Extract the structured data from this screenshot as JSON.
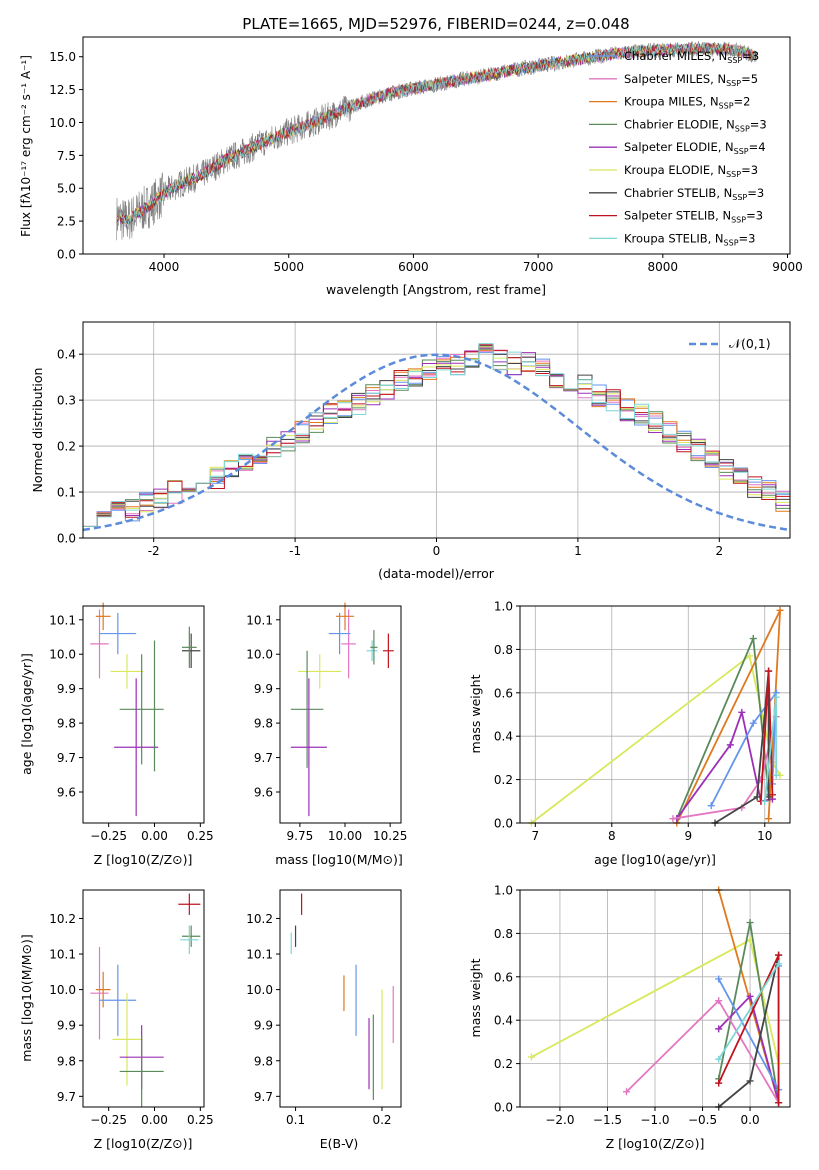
{
  "figure": {
    "title": "PLATE=1665, MJD=52976, FIBERID=0244, z=0.048"
  },
  "chart_data": [
    {
      "name": "spectrum",
      "type": "line",
      "xlabel": "wavelength [Angstrom, rest frame]",
      "ylabel": "Flux [fλ10⁻¹⁷ erg cm⁻² s⁻¹ A⁻¹]",
      "xlim": [
        3350,
        9020
      ],
      "ylim": [
        0,
        16.5
      ],
      "xticks": [
        4000,
        5000,
        6000,
        7000,
        8000,
        9000
      ],
      "yticks": [
        0.0,
        2.5,
        5.0,
        7.5,
        10.0,
        12.5,
        15.0
      ],
      "ytick_labels": [
        "0.0",
        "2.5",
        "5.0",
        "7.5",
        "10.0",
        "12.5",
        "15.0"
      ],
      "legend": "right",
      "data_series": {
        "name": "",
        "color": "#808080",
        "x": [
          3620,
          3700,
          3800,
          3900,
          4000,
          4100,
          4200,
          4300,
          4400,
          4500,
          4600,
          4800,
          5000,
          5200,
          5400,
          5600,
          5800,
          6000,
          6200,
          6400,
          6600,
          6800,
          7000,
          7200,
          7400,
          7600,
          7800,
          8000,
          8200,
          8400,
          8600,
          8750
        ],
        "y": [
          2.8,
          2.5,
          3.2,
          3.8,
          4.6,
          5.2,
          5.6,
          6.0,
          6.6,
          7.2,
          7.6,
          8.5,
          9.3,
          10.0,
          10.8,
          11.6,
          12.2,
          12.6,
          12.9,
          13.3,
          13.6,
          14.0,
          14.3,
          14.6,
          14.9,
          15.2,
          15.4,
          15.5,
          15.6,
          15.6,
          15.5,
          15.0
        ]
      },
      "series": [
        {
          "name": "Chabrier MILES, N_SSP=3",
          "label_main": "Chabrier MILES, N",
          "label_sub": "SSP",
          "label_tail": "=3",
          "color": "#6495ed"
        },
        {
          "name": "Salpeter MILES, N_SSP=5",
          "label_main": "Salpeter MILES, N",
          "label_sub": "SSP",
          "label_tail": "=5",
          "color": "#e377c2"
        },
        {
          "name": "Kroupa MILES, N_SSP=2",
          "label_main": "Kroupa MILES, N",
          "label_sub": "SSP",
          "label_tail": "=2",
          "color": "#e0781e"
        },
        {
          "name": "Chabrier ELODIE, N_SSP=3",
          "label_main": "Chabrier ELODIE, N",
          "label_sub": "SSP",
          "label_tail": "=3",
          "color": "#5a8a5a"
        },
        {
          "name": "Salpeter ELODIE, N_SSP=4",
          "label_main": "Salpeter ELODIE, N",
          "label_sub": "SSP",
          "label_tail": "=4",
          "color": "#9b30b8"
        },
        {
          "name": "Kroupa ELODIE, N_SSP=3",
          "label_main": "Kroupa ELODIE, N",
          "label_sub": "SSP",
          "label_tail": "=3",
          "color": "#d9e85c"
        },
        {
          "name": "Chabrier STELIB, N_SSP=3",
          "label_main": "Chabrier STELIB, N",
          "label_sub": "SSP",
          "label_tail": "=3",
          "color": "#444444"
        },
        {
          "name": "Salpeter STELIB, N_SSP=3",
          "label_main": "Salpeter STELIB, N",
          "label_sub": "SSP",
          "label_tail": "=3",
          "color": "#c0141e"
        },
        {
          "name": "Kroupa STELIB, N_SSP=3",
          "label_main": "Kroupa STELIB, N",
          "label_sub": "SSP",
          "label_tail": "=3",
          "color": "#7fd6d6"
        }
      ]
    },
    {
      "name": "residual-histogram",
      "type": "bar",
      "xlabel": "(data-model)/error",
      "ylabel": "Normed distribution",
      "xlim": [
        -2.5,
        2.5
      ],
      "ylim": [
        0,
        0.47
      ],
      "xticks": [
        -2,
        -1,
        0,
        1,
        2
      ],
      "yticks": [
        0.0,
        0.1,
        0.2,
        0.3,
        0.4
      ],
      "ytick_labels": [
        "0.0",
        "0.1",
        "0.2",
        "0.3",
        "0.4"
      ],
      "grid": true,
      "legend": "top-right",
      "reference_curve": {
        "label": "𝒩(0,1)",
        "color": "#5b8bd9",
        "mean": 0,
        "sigma": 1
      },
      "bin_width": 0.1,
      "histogram_x_start": -2.5,
      "histogram_values": [
        0.05,
        0.06,
        0.07,
        0.06,
        0.08,
        0.09,
        0.1,
        0.11,
        0.12,
        0.13,
        0.15,
        0.16,
        0.18,
        0.2,
        0.21,
        0.23,
        0.25,
        0.27,
        0.28,
        0.29,
        0.31,
        0.32,
        0.34,
        0.35,
        0.37,
        0.38,
        0.38,
        0.39,
        0.4,
        0.39,
        0.38,
        0.38,
        0.37,
        0.35,
        0.34,
        0.33,
        0.31,
        0.3,
        0.28,
        0.27,
        0.25,
        0.23,
        0.21,
        0.19,
        0.17,
        0.15,
        0.13,
        0.11,
        0.1,
        0.08
      ]
    },
    {
      "name": "age-vs-metallicity",
      "type": "scatter",
      "xlabel": "Z [log10(Z/Z⊙)]",
      "ylabel": "age [log10(age/yr)]",
      "xlim": [
        -0.39,
        0.27
      ],
      "ylim": [
        9.51,
        10.14
      ],
      "xticks": [
        -0.25,
        0.0,
        0.25
      ],
      "xtick_labels": [
        "−0.25",
        "0.00",
        "0.25"
      ],
      "yticks": [
        9.6,
        9.7,
        9.8,
        9.9,
        10.0,
        10.1
      ],
      "ytick_labels": [
        "9.6",
        "9.7",
        "9.8",
        "9.9",
        "10.0",
        "10.1"
      ],
      "points": [
        {
          "x": -0.3,
          "y": 10.03,
          "xerr": 0.05,
          "yerr": 0.1,
          "color": "#e377c2"
        },
        {
          "x": -0.28,
          "y": 10.11,
          "xerr": 0.04,
          "yerr": 0.04,
          "color": "#e0781e"
        },
        {
          "x": -0.2,
          "y": 10.06,
          "xerr": 0.1,
          "yerr": 0.06,
          "color": "#6495ed"
        },
        {
          "x": -0.15,
          "y": 9.95,
          "xerr": 0.09,
          "yerr": 0.05,
          "color": "#d9e85c"
        },
        {
          "x": -0.07,
          "y": 9.84,
          "xerr": 0.12,
          "yerr": 0.16,
          "color": "#5a8a5a"
        },
        {
          "x": -0.1,
          "y": 9.73,
          "xerr": 0.12,
          "yerr": 0.2,
          "color": "#9b30b8"
        },
        {
          "x": 0.0,
          "y": 9.85,
          "xerr": 0.0,
          "yerr": 0.19,
          "color": "#5a8a5a"
        },
        {
          "x": 0.2,
          "y": 10.01,
          "xerr": 0.05,
          "yerr": 0.05,
          "color": "#444444"
        },
        {
          "x": 0.19,
          "y": 10.02,
          "xerr": 0.04,
          "yerr": 0.06,
          "color": "#5a8a5a"
        }
      ]
    },
    {
      "name": "age-vs-mass",
      "type": "scatter",
      "xlabel": "mass [log10(M/M⊙)]",
      "ylabel": "",
      "xlim": [
        9.64,
        10.31
      ],
      "ylim": [
        9.51,
        10.14
      ],
      "xticks": [
        9.75,
        10.0,
        10.25
      ],
      "xtick_labels": [
        "9.75",
        "10.00",
        "10.25"
      ],
      "yticks": [
        9.6,
        9.7,
        9.8,
        9.9,
        10.0,
        10.1
      ],
      "ytick_labels": [
        "9.6",
        "9.7",
        "9.8",
        "9.9",
        "10.0",
        "10.1"
      ],
      "points": [
        {
          "x": 10.02,
          "y": 10.03,
          "xerr": 0.04,
          "yerr": 0.1,
          "color": "#e377c2"
        },
        {
          "x": 10.0,
          "y": 10.11,
          "xerr": 0.05,
          "yerr": 0.04,
          "color": "#e0781e"
        },
        {
          "x": 9.97,
          "y": 10.06,
          "xerr": 0.06,
          "yerr": 0.06,
          "color": "#6495ed"
        },
        {
          "x": 9.86,
          "y": 9.95,
          "xerr": 0.12,
          "yerr": 0.05,
          "color": "#d9e85c"
        },
        {
          "x": 9.79,
          "y": 9.84,
          "xerr": 0.09,
          "yerr": 0.17,
          "color": "#5a8a5a"
        },
        {
          "x": 9.8,
          "y": 9.73,
          "xerr": 0.1,
          "yerr": 0.2,
          "color": "#9b30b8"
        },
        {
          "x": 10.15,
          "y": 10.01,
          "xerr": 0.03,
          "yerr": 0.03,
          "color": "#7fd6d6"
        },
        {
          "x": 10.16,
          "y": 10.02,
          "xerr": 0.02,
          "yerr": 0.05,
          "color": "#5a8a5a"
        },
        {
          "x": 10.24,
          "y": 10.01,
          "xerr": 0.03,
          "yerr": 0.05,
          "color": "#c0141e"
        }
      ]
    },
    {
      "name": "mass-weight-vs-age",
      "type": "line",
      "xlabel": "age [log10(age/yr)]",
      "ylabel": "mass weight",
      "xlim": [
        6.8,
        10.33
      ],
      "ylim": [
        0,
        1.0
      ],
      "xticks": [
        7,
        8,
        9,
        10
      ],
      "yticks": [
        0.0,
        0.2,
        0.4,
        0.6,
        0.8,
        1.0
      ],
      "ytick_labels": [
        "0.0",
        "0.2",
        "0.4",
        "0.6",
        "0.8",
        "1.0"
      ],
      "grid": true,
      "series": [
        {
          "color": "#d9e85c",
          "x": [
            6.95,
            9.8,
            10.1,
            10.2
          ],
          "y": [
            0.0,
            0.77,
            0.28,
            0.22
          ]
        },
        {
          "color": "#e0781e",
          "x": [
            8.85,
            10.2,
            10.05
          ],
          "y": [
            0.0,
            0.98,
            0.02
          ]
        },
        {
          "color": "#5a8a5a",
          "x": [
            8.85,
            9.85,
            10.05
          ],
          "y": [
            0.02,
            0.85,
            0.13
          ]
        },
        {
          "color": "#9b30b8",
          "x": [
            8.85,
            9.55,
            9.7,
            9.95,
            10.1
          ],
          "y": [
            0.02,
            0.36,
            0.51,
            0.1,
            0.11
          ]
        },
        {
          "color": "#e377c2",
          "x": [
            8.8,
            9.7,
            9.95,
            10.15
          ],
          "y": [
            0.02,
            0.07,
            0.2,
            0.49
          ]
        },
        {
          "color": "#6495ed",
          "x": [
            9.3,
            9.85,
            10.15,
            10.1
          ],
          "y": [
            0.08,
            0.46,
            0.6,
            0.18
          ]
        },
        {
          "color": "#444444",
          "x": [
            9.35,
            9.9,
            10.05,
            10.05
          ],
          "y": [
            0.0,
            0.12,
            0.7,
            0.12
          ]
        },
        {
          "color": "#c0141e",
          "x": [
            9.95,
            10.05,
            10.1
          ],
          "y": [
            0.1,
            0.7,
            0.13
          ]
        },
        {
          "color": "#7fd6d6",
          "x": [
            10.0,
            10.15,
            10.15
          ],
          "y": [
            0.1,
            0.58,
            0.22
          ]
        }
      ]
    },
    {
      "name": "mass-vs-metallicity",
      "type": "scatter",
      "xlabel": "Z [log10(Z/Z⊙)]",
      "ylabel": "mass [log10(M/M⊙)]",
      "xlim": [
        -0.39,
        0.27
      ],
      "ylim": [
        9.67,
        10.28
      ],
      "xticks": [
        -0.25,
        0.0,
        0.25
      ],
      "xtick_labels": [
        "−0.25",
        "0.00",
        "0.25"
      ],
      "yticks": [
        9.7,
        9.8,
        9.9,
        10.0,
        10.1,
        10.2
      ],
      "ytick_labels": [
        "9.7",
        "9.8",
        "9.9",
        "10.0",
        "10.1",
        "10.2"
      ],
      "points": [
        {
          "x": -0.3,
          "y": 9.99,
          "xerr": 0.05,
          "yerr": 0.13,
          "color": "#e377c2"
        },
        {
          "x": -0.28,
          "y": 10.0,
          "xerr": 0.04,
          "yerr": 0.05,
          "color": "#e0781e"
        },
        {
          "x": -0.2,
          "y": 9.97,
          "xerr": 0.1,
          "yerr": 0.1,
          "color": "#6495ed"
        },
        {
          "x": -0.15,
          "y": 9.86,
          "xerr": 0.08,
          "yerr": 0.13,
          "color": "#d9e85c"
        },
        {
          "x": -0.07,
          "y": 9.81,
          "xerr": 0.12,
          "yerr": 0.09,
          "color": "#9b30b8"
        },
        {
          "x": -0.07,
          "y": 9.77,
          "xerr": 0.12,
          "yerr": 0.1,
          "color": "#5a8a5a"
        },
        {
          "x": 0.2,
          "y": 10.15,
          "xerr": 0.05,
          "yerr": 0.03,
          "color": "#5a8a5a"
        },
        {
          "x": 0.19,
          "y": 10.14,
          "xerr": 0.05,
          "yerr": 0.04,
          "color": "#7fd6d6"
        },
        {
          "x": 0.19,
          "y": 10.24,
          "xerr": 0.06,
          "yerr": 0.03,
          "color": "#c0141e"
        }
      ]
    },
    {
      "name": "mass-vs-extinction",
      "type": "scatter",
      "xlabel": "E(B-V)",
      "ylabel": "",
      "xlim": [
        0.082,
        0.222
      ],
      "ylim": [
        9.67,
        10.28
      ],
      "xticks": [
        0.1,
        0.2
      ],
      "xtick_labels": [
        "0.1",
        "0.2"
      ],
      "yticks": [
        9.7,
        9.8,
        9.9,
        10.0,
        10.1,
        10.2
      ],
      "ytick_labels": [
        "9.7",
        "9.8",
        "9.9",
        "10.0",
        "10.1",
        "10.2"
      ],
      "points": [
        {
          "x": 0.095,
          "y": 10.13,
          "xerr": 0,
          "yerr": 0.03,
          "color": "#7fd6d6"
        },
        {
          "x": 0.1,
          "y": 10.15,
          "xerr": 0,
          "yerr": 0.03,
          "color": "#444444"
        },
        {
          "x": 0.107,
          "y": 10.24,
          "xerr": 0,
          "yerr": 0.03,
          "color": "#c0141e"
        },
        {
          "x": 0.156,
          "y": 9.99,
          "xerr": 0,
          "yerr": 0.05,
          "color": "#e0781e"
        },
        {
          "x": 0.17,
          "y": 9.97,
          "xerr": 0,
          "yerr": 0.1,
          "color": "#6495ed"
        },
        {
          "x": 0.185,
          "y": 9.82,
          "xerr": 0,
          "yerr": 0.1,
          "color": "#9b30b8"
        },
        {
          "x": 0.19,
          "y": 9.81,
          "xerr": 0,
          "yerr": 0.12,
          "color": "#5a8a5a"
        },
        {
          "x": 0.2,
          "y": 9.86,
          "xerr": 0,
          "yerr": 0.14,
          "color": "#d9e85c"
        },
        {
          "x": 0.213,
          "y": 9.93,
          "xerr": 0,
          "yerr": 0.08,
          "color": "#e377c2"
        }
      ]
    },
    {
      "name": "mass-weight-vs-metallicity",
      "type": "line",
      "xlabel": "Z [log10(Z/Z⊙)]",
      "ylabel": "mass weight",
      "xlim": [
        -2.42,
        0.42
      ],
      "ylim": [
        0,
        1.0
      ],
      "xticks": [
        -2.0,
        -1.5,
        -1.0,
        -0.5,
        0.0
      ],
      "xtick_labels": [
        "−2.0",
        "−1.5",
        "−1.0",
        "−0.5",
        "0.0"
      ],
      "yticks": [
        0.0,
        0.2,
        0.4,
        0.6,
        0.8,
        1.0
      ],
      "ytick_labels": [
        "0.0",
        "0.2",
        "0.4",
        "0.6",
        "0.8",
        "1.0"
      ],
      "grid": true,
      "series": [
        {
          "color": "#d9e85c",
          "x": [
            -2.3,
            0.0,
            0.3
          ],
          "y": [
            0.23,
            0.77,
            0.2
          ]
        },
        {
          "color": "#e0781e",
          "x": [
            -0.33,
            0.3
          ],
          "y": [
            1.0,
            0.02
          ]
        },
        {
          "color": "#5a8a5a",
          "x": [
            -0.33,
            0.0,
            0.3
          ],
          "y": [
            0.13,
            0.85,
            0.02
          ]
        },
        {
          "color": "#9b30b8",
          "x": [
            -0.33,
            0.0,
            0.3
          ],
          "y": [
            0.36,
            0.51,
            0.02
          ]
        },
        {
          "color": "#e377c2",
          "x": [
            -1.3,
            -0.33,
            0.3
          ],
          "y": [
            0.07,
            0.49,
            0.02
          ]
        },
        {
          "color": "#6495ed",
          "x": [
            -0.33,
            0.3,
            0.3
          ],
          "y": [
            0.59,
            0.08,
            0.65
          ]
        },
        {
          "color": "#444444",
          "x": [
            -0.33,
            0.0,
            0.3
          ],
          "y": [
            0.0,
            0.12,
            0.7
          ]
        },
        {
          "color": "#c0141e",
          "x": [
            -0.33,
            0.3,
            0.3
          ],
          "y": [
            0.11,
            0.7,
            0.02
          ]
        },
        {
          "color": "#7fd6d6",
          "x": [
            -0.33,
            0.3
          ],
          "y": [
            0.22,
            0.66
          ]
        }
      ]
    }
  ]
}
